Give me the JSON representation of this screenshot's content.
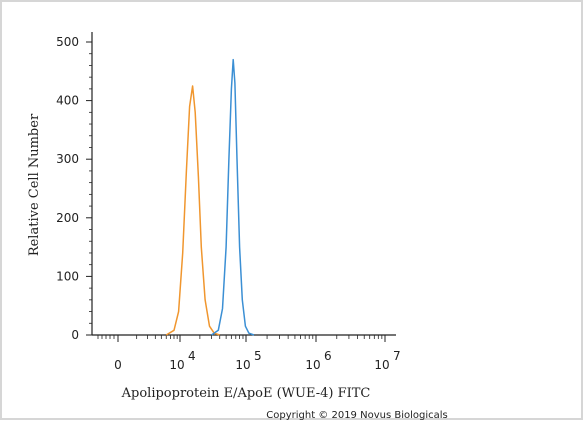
{
  "chart_data": {
    "type": "line",
    "title": "",
    "xlabel": "Apolipoprotein E/ApoE (WUE-4) FITC",
    "ylabel": "Relative Cell Number",
    "x_scale": "biexponential",
    "ylim": [
      0,
      500
    ],
    "x_ticks": [
      {
        "label": "0",
        "exp": ""
      },
      {
        "label": "10",
        "exp": "4"
      },
      {
        "label": "10",
        "exp": "5"
      },
      {
        "label": "10",
        "exp": "6"
      },
      {
        "label": "10",
        "exp": "7"
      }
    ],
    "y_ticks": [
      "0",
      "100",
      "200",
      "300",
      "400",
      "500"
    ],
    "grid": false,
    "legend": "none",
    "series": [
      {
        "color": "#f0962e",
        "x": [
          6000,
          8000,
          9500,
          11000,
          12500,
          14000,
          15500,
          17000,
          19000,
          21000,
          24000,
          28000,
          33000,
          40000
        ],
        "y": [
          0,
          8,
          40,
          140,
          280,
          390,
          425,
          380,
          270,
          150,
          60,
          15,
          3,
          0
        ]
      },
      {
        "color": "#3b8fd4",
        "x": [
          30000,
          38000,
          44000,
          50000,
          55000,
          60000,
          64000,
          68000,
          73000,
          80000,
          88000,
          98000,
          110000,
          130000
        ],
        "y": [
          0,
          8,
          45,
          150,
          300,
          420,
          470,
          430,
          300,
          150,
          60,
          15,
          3,
          0
        ]
      }
    ]
  },
  "copyright": "Copyright © 2019 Novus Biologicals"
}
